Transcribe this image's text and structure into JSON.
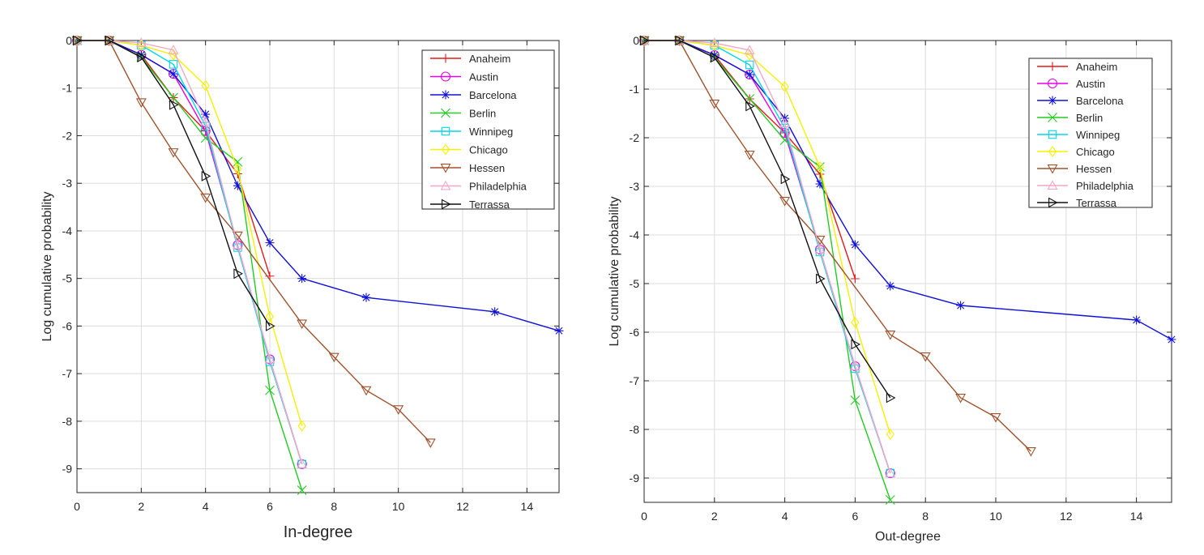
{
  "chart_data": [
    {
      "type": "line",
      "xlabel": "In-degree",
      "ylabel": "Log cumulative probability",
      "xlim": [
        0,
        15
      ],
      "ylim": [
        -9.5,
        0
      ],
      "xticks": [
        "0",
        "2",
        "4",
        "6",
        "8",
        "10",
        "12",
        "14"
      ],
      "yticks": [
        "0",
        "-1",
        "-2",
        "-3",
        "-4",
        "-5",
        "-6",
        "-7",
        "-8",
        "-9"
      ],
      "grid": true,
      "legend_position": "top-right",
      "series": [
        {
          "name": "Anaheim",
          "color": "#e31a1c",
          "marker": "plus",
          "points": [
            [
              0,
              0
            ],
            [
              1,
              0
            ],
            [
              2,
              -0.3
            ],
            [
              3,
              -1.2
            ],
            [
              4,
              -1.9
            ],
            [
              5,
              -2.8
            ],
            [
              6,
              -4.95
            ]
          ]
        },
        {
          "name": "Austin",
          "color": "#e600e6",
          "marker": "circle",
          "points": [
            [
              0,
              0
            ],
            [
              1,
              0
            ],
            [
              2,
              -0.3
            ],
            [
              3,
              -0.7
            ],
            [
              4,
              -1.9
            ],
            [
              5,
              -4.3
            ],
            [
              6,
              -6.7
            ],
            [
              7,
              -8.9
            ]
          ]
        },
        {
          "name": "Barcelona",
          "color": "#1010d8",
          "marker": "asterisk",
          "points": [
            [
              0,
              0
            ],
            [
              1,
              0
            ],
            [
              2,
              -0.3
            ],
            [
              3,
              -0.7
            ],
            [
              4,
              -1.55
            ],
            [
              5,
              -3.05
            ],
            [
              6,
              -4.25
            ],
            [
              7,
              -5.0
            ],
            [
              9,
              -5.4
            ],
            [
              13,
              -5.7
            ],
            [
              15,
              -6.1
            ]
          ]
        },
        {
          "name": "Berlin",
          "color": "#22cc22",
          "marker": "x",
          "points": [
            [
              0,
              0
            ],
            [
              1,
              0
            ],
            [
              2,
              -0.35
            ],
            [
              3,
              -1.2
            ],
            [
              4,
              -2.05
            ],
            [
              5,
              -2.55
            ],
            [
              6,
              -7.35
            ],
            [
              7,
              -9.45
            ]
          ]
        },
        {
          "name": "Winnipeg",
          "color": "#00d7e6",
          "marker": "square",
          "points": [
            [
              0,
              0
            ],
            [
              1,
              0
            ],
            [
              2,
              -0.1
            ],
            [
              3,
              -0.5
            ],
            [
              4,
              -1.8
            ],
            [
              5,
              -4.35
            ],
            [
              6,
              -6.75
            ],
            [
              7,
              -8.9
            ]
          ]
        },
        {
          "name": "Chicago",
          "color": "#f5f000",
          "marker": "diamond",
          "points": [
            [
              0,
              0
            ],
            [
              1,
              0
            ],
            [
              2,
              -0.1
            ],
            [
              3,
              -0.3
            ],
            [
              4,
              -0.95
            ],
            [
              5,
              -2.7
            ],
            [
              6,
              -5.8
            ],
            [
              7,
              -8.1
            ]
          ]
        },
        {
          "name": "Hessen",
          "color": "#a0522d",
          "marker": "triangle-down",
          "points": [
            [
              0,
              0
            ],
            [
              1,
              0
            ],
            [
              2,
              -1.3
            ],
            [
              3,
              -2.35
            ],
            [
              4,
              -3.3
            ],
            [
              5,
              -4.1
            ],
            [
              7,
              -5.95
            ],
            [
              8,
              -6.65
            ],
            [
              9,
              -7.35
            ],
            [
              10,
              -7.75
            ],
            [
              11,
              -8.45
            ]
          ]
        },
        {
          "name": "Philadelphia",
          "color": "#f4a6c8",
          "marker": "triangle-up",
          "points": [
            [
              0,
              0
            ],
            [
              1,
              0
            ],
            [
              2,
              -0.05
            ],
            [
              3,
              -0.2
            ],
            [
              4,
              -1.7
            ],
            [
              5,
              -4.3
            ],
            [
              6,
              -6.7
            ],
            [
              7,
              -8.9
            ]
          ]
        },
        {
          "name": "Terrassa",
          "color": "#111111",
          "marker": "triangle-right",
          "points": [
            [
              0,
              0
            ],
            [
              1,
              0
            ],
            [
              2,
              -0.35
            ],
            [
              3,
              -1.35
            ],
            [
              4,
              -2.85
            ],
            [
              5,
              -4.9
            ],
            [
              6,
              -6.0
            ]
          ]
        }
      ]
    },
    {
      "type": "line",
      "xlabel": "Out-degree",
      "ylabel": "Log cumulative probability",
      "xlim": [
        0,
        15
      ],
      "ylim": [
        -9.5,
        0
      ],
      "xticks": [
        "0",
        "2",
        "4",
        "6",
        "8",
        "10",
        "12",
        "14"
      ],
      "yticks": [
        "0",
        "-1",
        "-2",
        "-3",
        "-4",
        "-5",
        "-6",
        "-7",
        "-8",
        "-9"
      ],
      "grid": true,
      "legend_position": "top-right",
      "series": [
        {
          "name": "Anaheim",
          "color": "#e31a1c",
          "marker": "plus",
          "points": [
            [
              0,
              0
            ],
            [
              1,
              0
            ],
            [
              2,
              -0.3
            ],
            [
              3,
              -1.2
            ],
            [
              4,
              -1.9
            ],
            [
              5,
              -2.75
            ],
            [
              6,
              -4.9
            ]
          ]
        },
        {
          "name": "Austin",
          "color": "#e600e6",
          "marker": "circle",
          "points": [
            [
              0,
              0
            ],
            [
              1,
              0
            ],
            [
              2,
              -0.3
            ],
            [
              3,
              -0.7
            ],
            [
              4,
              -1.9
            ],
            [
              5,
              -4.3
            ],
            [
              6,
              -6.7
            ],
            [
              7,
              -8.9
            ]
          ]
        },
        {
          "name": "Barcelona",
          "color": "#1010d8",
          "marker": "asterisk",
          "points": [
            [
              0,
              0
            ],
            [
              1,
              0
            ],
            [
              2,
              -0.3
            ],
            [
              3,
              -0.7
            ],
            [
              4,
              -1.6
            ],
            [
              5,
              -2.95
            ],
            [
              6,
              -4.2
            ],
            [
              7,
              -5.05
            ],
            [
              9,
              -5.45
            ],
            [
              14,
              -5.75
            ],
            [
              15,
              -6.15
            ]
          ]
        },
        {
          "name": "Berlin",
          "color": "#22cc22",
          "marker": "x",
          "points": [
            [
              0,
              0
            ],
            [
              1,
              0
            ],
            [
              2,
              -0.35
            ],
            [
              3,
              -1.2
            ],
            [
              4,
              -2.05
            ],
            [
              5,
              -2.6
            ],
            [
              6,
              -7.4
            ],
            [
              7,
              -9.45
            ]
          ]
        },
        {
          "name": "Winnipeg",
          "color": "#00d7e6",
          "marker": "square",
          "points": [
            [
              0,
              0
            ],
            [
              1,
              0
            ],
            [
              2,
              -0.1
            ],
            [
              3,
              -0.5
            ],
            [
              4,
              -1.8
            ],
            [
              5,
              -4.35
            ],
            [
              6,
              -6.75
            ],
            [
              7,
              -8.9
            ]
          ]
        },
        {
          "name": "Chicago",
          "color": "#f5f000",
          "marker": "diamond",
          "points": [
            [
              0,
              0
            ],
            [
              1,
              0
            ],
            [
              2,
              -0.1
            ],
            [
              3,
              -0.3
            ],
            [
              4,
              -0.95
            ],
            [
              5,
              -2.6
            ],
            [
              6,
              -5.8
            ],
            [
              7,
              -8.1
            ]
          ]
        },
        {
          "name": "Hessen",
          "color": "#a0522d",
          "marker": "triangle-down",
          "points": [
            [
              0,
              0
            ],
            [
              1,
              0
            ],
            [
              2,
              -1.3
            ],
            [
              3,
              -2.35
            ],
            [
              4,
              -3.3
            ],
            [
              5,
              -4.1
            ],
            [
              7,
              -6.05
            ],
            [
              8,
              -6.5
            ],
            [
              9,
              -7.35
            ],
            [
              10,
              -7.75
            ],
            [
              11,
              -8.45
            ]
          ]
        },
        {
          "name": "Philadelphia",
          "color": "#f4a6c8",
          "marker": "triangle-up",
          "points": [
            [
              0,
              0
            ],
            [
              1,
              0
            ],
            [
              2,
              -0.05
            ],
            [
              3,
              -0.2
            ],
            [
              4,
              -1.7
            ],
            [
              5,
              -4.3
            ],
            [
              6,
              -6.7
            ],
            [
              7,
              -8.9
            ]
          ]
        },
        {
          "name": "Terrassa",
          "color": "#111111",
          "marker": "triangle-right",
          "points": [
            [
              0,
              0
            ],
            [
              1,
              0
            ],
            [
              2,
              -0.35
            ],
            [
              3,
              -1.35
            ],
            [
              4,
              -2.85
            ],
            [
              5,
              -4.9
            ],
            [
              6,
              -6.25
            ],
            [
              7,
              -7.35
            ]
          ]
        }
      ]
    }
  ]
}
